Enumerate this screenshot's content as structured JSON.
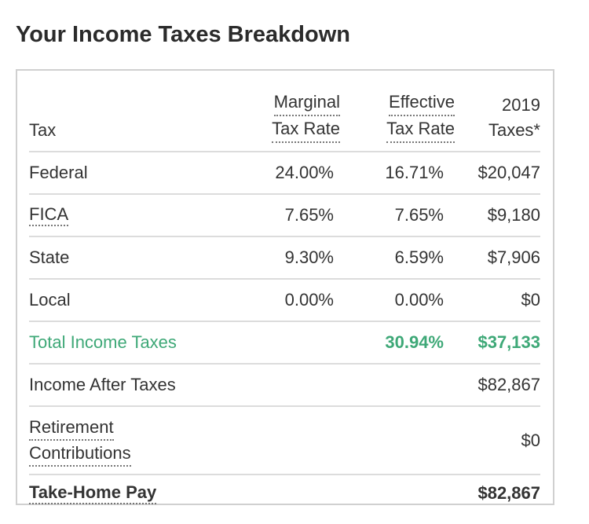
{
  "header": {
    "title": "Your Income Taxes Breakdown"
  },
  "table": {
    "columns": [
      [
        "Tax"
      ],
      [
        "Marginal",
        "Tax Rate"
      ],
      [
        "Effective",
        "Tax Rate"
      ],
      [
        "2019",
        "Taxes*"
      ]
    ],
    "rows": [
      {
        "label": [
          "Federal"
        ],
        "marginal": "24.00%",
        "effective": "16.71%",
        "taxes": "$20,047"
      },
      {
        "label": [
          "FICA"
        ],
        "marginal": "7.65%",
        "effective": "7.65%",
        "taxes": "$9,180"
      },
      {
        "label": [
          "State"
        ],
        "marginal": "9.30%",
        "effective": "6.59%",
        "taxes": "$7,906"
      },
      {
        "label": [
          "Local"
        ],
        "marginal": "0.00%",
        "effective": "0.00%",
        "taxes": "$0"
      },
      {
        "label": [
          "Total Income Taxes"
        ],
        "effective": "30.94%",
        "taxes": "$37,133"
      },
      {
        "label": [
          "Income After Taxes"
        ],
        "taxes": "$82,867"
      },
      {
        "label": [
          "Retirement",
          "Contributions"
        ],
        "taxes": "$0"
      },
      {
        "label": [
          "Take-Home Pay"
        ],
        "taxes": "$82,867"
      }
    ]
  }
}
